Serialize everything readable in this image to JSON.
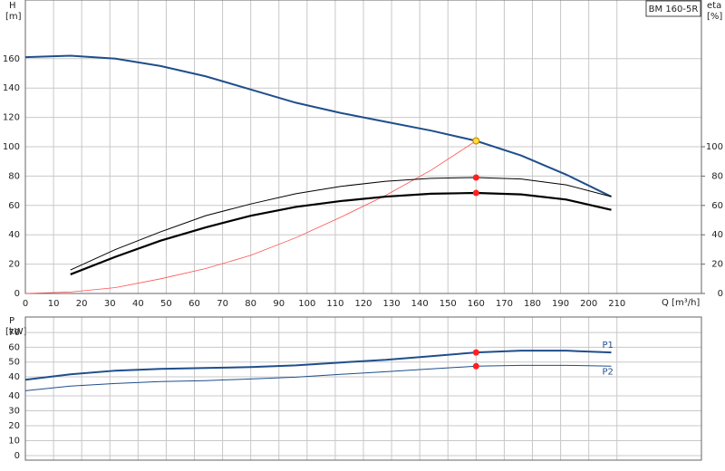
{
  "chart_data": [
    {
      "type": "line",
      "model": "BM 160-5R",
      "y_label": "H",
      "y_unit": "[m]",
      "y2_label": "eta",
      "y2_unit": "[%]",
      "x_label": "Q [m³/h]",
      "xlim": [
        0,
        240
      ],
      "xticks": [
        0,
        10,
        20,
        30,
        40,
        50,
        60,
        70,
        80,
        90,
        100,
        110,
        120,
        130,
        140,
        150,
        160,
        170,
        180,
        190,
        200,
        210
      ],
      "ylim": [
        0,
        200
      ],
      "yticks": [
        0,
        20,
        40,
        60,
        80,
        100,
        120,
        140,
        160
      ],
      "y2lim": [
        0,
        200
      ],
      "y2ticks": [
        0,
        20,
        40,
        60,
        80,
        100
      ],
      "grid": true,
      "series": [
        {
          "color": "#1f4e8c",
          "width": 2,
          "x": [
            0,
            16,
            32,
            48,
            64,
            80,
            96,
            112,
            128,
            144,
            160,
            176,
            192,
            208
          ],
          "values": [
            161,
            162,
            160,
            155,
            148,
            139,
            130,
            123,
            117,
            111,
            104,
            94,
            81,
            66
          ]
        },
        {
          "color": "#ff5050",
          "width": 0.8,
          "x": [
            0,
            16,
            32,
            48,
            64,
            80,
            96,
            112,
            128,
            144,
            160
          ],
          "values": [
            0,
            1,
            4,
            10,
            17,
            26,
            38,
            52,
            67,
            84,
            104
          ]
        },
        {
          "color": "#000000",
          "width": 1,
          "axis": "y2",
          "x": [
            16,
            32,
            48,
            64,
            80,
            96,
            112,
            128,
            144,
            160,
            176,
            192,
            208
          ],
          "values": [
            16,
            30,
            42,
            53,
            61,
            68,
            73,
            76.5,
            78.5,
            79,
            78,
            74,
            66
          ]
        },
        {
          "color": "#000000",
          "width": 2.2,
          "axis": "y2",
          "x": [
            16,
            32,
            48,
            64,
            80,
            96,
            112,
            128,
            144,
            160,
            176,
            192,
            208
          ],
          "values": [
            13,
            25,
            36,
            45,
            53,
            59,
            63,
            66,
            68,
            68.5,
            67.5,
            64,
            57
          ]
        }
      ],
      "points": [
        {
          "x": 160,
          "value": 104,
          "color": "#ffdd33"
        },
        {
          "x": 160,
          "value": 79,
          "color": "#ff2020",
          "axis": "y2"
        },
        {
          "x": 160,
          "value": 68.5,
          "color": "#ff2020",
          "axis": "y2"
        }
      ]
    },
    {
      "type": "line",
      "y_label": "P",
      "y_unit": "[kW]",
      "xlim": [
        0,
        240
      ],
      "xticks": [
        0,
        10,
        20,
        30,
        40,
        50,
        60,
        70,
        80,
        90,
        100,
        110,
        120,
        130,
        140,
        150,
        160,
        170,
        180,
        190,
        200,
        210
      ],
      "ylim": [
        -16.4,
        80.5
      ],
      "yticks": [
        70,
        60,
        50,
        40
      ],
      "y2lim": [
        -3,
        92.7
      ],
      "y2ticks": [
        40,
        30,
        20,
        10,
        0
      ],
      "grid": true,
      "series": [
        {
          "name": "P1",
          "color": "#1f4e8c",
          "width": 2,
          "x": [
            0,
            16,
            32,
            48,
            64,
            80,
            96,
            112,
            128,
            144,
            160,
            176,
            192,
            208
          ],
          "values": [
            38.0,
            41.7,
            44.2,
            45.4,
            46.0,
            46.6,
            47.8,
            49.7,
            51.5,
            54.0,
            56.5,
            57.7,
            57.7,
            56.5
          ]
        },
        {
          "name": "P2",
          "color": "#1f4e8c",
          "width": 1,
          "x": [
            0,
            16,
            32,
            48,
            64,
            80,
            96,
            112,
            128,
            144,
            160,
            176,
            192,
            208
          ],
          "values": [
            30.6,
            33.7,
            35.5,
            36.8,
            37.4,
            38.6,
            39.8,
            41.7,
            43.5,
            45.4,
            47.2,
            47.8,
            47.8,
            47.2
          ]
        }
      ],
      "points": [
        {
          "x": 160,
          "value": 56.5,
          "color": "#ff2020"
        },
        {
          "x": 160,
          "value": 47.2,
          "color": "#ff2020"
        }
      ]
    }
  ]
}
